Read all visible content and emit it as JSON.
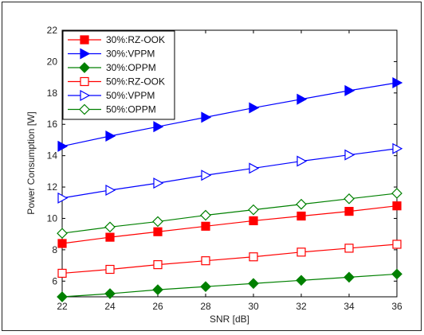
{
  "chart_data": {
    "type": "line",
    "xlabel": "SNR [dB]",
    "ylabel": "Power Consumption [W]",
    "xlim": [
      22,
      36
    ],
    "ylim": [
      5,
      22
    ],
    "xticks": [
      22,
      24,
      26,
      28,
      30,
      32,
      34,
      36
    ],
    "yticks": [
      6,
      8,
      10,
      12,
      14,
      16,
      18,
      20,
      22
    ],
    "grid": false,
    "legend_position": "top-left",
    "x": [
      22,
      24,
      26,
      28,
      30,
      32,
      34,
      36
    ],
    "series": [
      {
        "name": "30%:RZ-OOK",
        "color": "#ff0000",
        "marker": "square",
        "filled": true,
        "values": [
          8.4,
          8.8,
          9.15,
          9.5,
          9.85,
          10.15,
          10.45,
          10.8
        ]
      },
      {
        "name": "30%:VPPM",
        "color": "#0000ff",
        "marker": "triangle-right",
        "filled": true,
        "values": [
          14.6,
          15.25,
          15.85,
          16.45,
          17.05,
          17.6,
          18.15,
          18.65
        ]
      },
      {
        "name": "30%:OPPM",
        "color": "#008000",
        "marker": "diamond",
        "filled": true,
        "values": [
          5.0,
          5.2,
          5.45,
          5.65,
          5.85,
          6.05,
          6.25,
          6.45
        ]
      },
      {
        "name": "50%:RZ-OOK",
        "color": "#ff0000",
        "marker": "square",
        "filled": false,
        "values": [
          6.5,
          6.75,
          7.05,
          7.3,
          7.55,
          7.85,
          8.1,
          8.35
        ]
      },
      {
        "name": "50%:VPPM",
        "color": "#0000ff",
        "marker": "triangle-right",
        "filled": false,
        "values": [
          11.3,
          11.8,
          12.25,
          12.75,
          13.2,
          13.65,
          14.05,
          14.45
        ]
      },
      {
        "name": "50%:OPPM",
        "color": "#008000",
        "marker": "diamond",
        "filled": false,
        "values": [
          9.05,
          9.45,
          9.8,
          10.2,
          10.55,
          10.9,
          11.25,
          11.6
        ]
      }
    ]
  }
}
